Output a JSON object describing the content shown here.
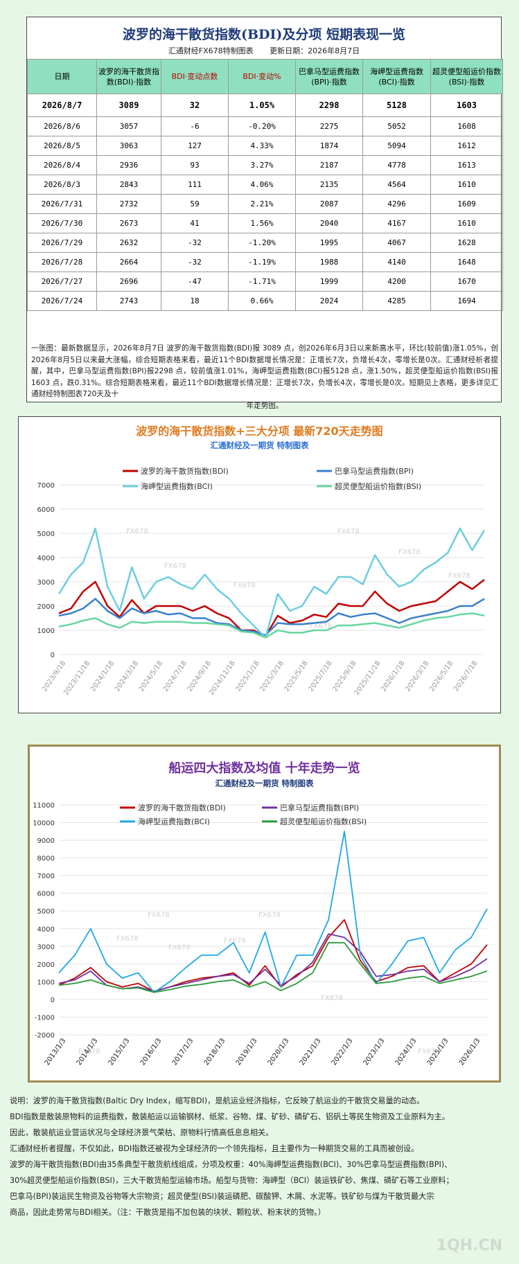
{
  "table": {
    "title": "波罗的海干散货指数(BDI)及分项  短期表现一览",
    "subtitle_left": "汇通财经FX678特制图表",
    "subtitle_right": "更新日期：2026年8月7日",
    "headers": [
      "日期",
      "波罗的海干散货指数(BDI)·指数",
      "BDI·变动点数",
      "BDI·变动%",
      "巴拿马型运费指数(BPI)·指数",
      "海岬型运费指数(BCI)·指数",
      "超灵便型船运价指数(BSI)·指数"
    ],
    "rows": [
      [
        "2026/8/7",
        "3089",
        "32",
        "1.05%",
        "2298",
        "5128",
        "1603"
      ],
      [
        "2026/8/6",
        "3057",
        "-6",
        "-0.20%",
        "2275",
        "5052",
        "1608"
      ],
      [
        "2026/8/5",
        "3063",
        "127",
        "4.33%",
        "1874",
        "5094",
        "1612"
      ],
      [
        "2026/8/4",
        "2936",
        "93",
        "3.27%",
        "2187",
        "4778",
        "1613"
      ],
      [
        "2026/8/3",
        "2843",
        "111",
        "4.06%",
        "2135",
        "4564",
        "1610"
      ],
      [
        "2026/7/31",
        "2732",
        "59",
        "2.21%",
        "2087",
        "4296",
        "1609"
      ],
      [
        "2026/7/30",
        "2673",
        "41",
        "1.56%",
        "2040",
        "4167",
        "1610"
      ],
      [
        "2026/7/29",
        "2632",
        "-32",
        "-1.20%",
        "1995",
        "4067",
        "1628"
      ],
      [
        "2026/7/28",
        "2664",
        "-32",
        "-1.19%",
        "1988",
        "4140",
        "1648"
      ],
      [
        "2026/7/27",
        "2696",
        "-47",
        "-1.71%",
        "1999",
        "4200",
        "1670"
      ],
      [
        "2026/7/24",
        "2743",
        "18",
        "0.66%",
        "2024",
        "4285",
        "1694"
      ]
    ],
    "note": "一张图：最新数据显示，2026年8月7日 波罗的海干散货指数(BDI)报 3089 点，创2026年6月3日以来新高水平，环比(较前值)涨1.05%，创2026年8月5日以来最大涨幅，综合短期表格来看，最近11个BDI数据增长情况是：正增长7次，负增长4次，零增长是0次。汇通财经析者提醒，其中，巴拿马型运费指数(BPI)报2298 点，较前值涨1.01%，海岬型运费指数(BCI)报5128 点，涨1.50%，超灵便型船运价指数(BSI)报1603 点，跌0.31%。综合短期表格来看，最近11个BDI数据增长情况是：正增长7次，负增长4次，零增长是0次。短期见上表格，更多详见汇通财经特制图表720天及十",
    "note_end": "年走势图。"
  },
  "chart_data": [
    {
      "type": "line",
      "title": "波罗的海干散货指数+三大分项  最新720天走势图",
      "subtitle": "汇通财经及一期货  特制图表",
      "watermark": "FX678",
      "ylim": [
        0,
        7000
      ],
      "yticks": [
        0,
        1000,
        2000,
        3000,
        4000,
        5000,
        6000,
        7000
      ],
      "xticks": [
        "2023/9/18",
        "2023/11/18",
        "2024/1/18",
        "2024/3/18",
        "2024/5/18",
        "2024/7/18",
        "2024/9/18",
        "2024/11/18",
        "2025/1/18",
        "2025/3/18",
        "2025/5/18",
        "2025/7/18",
        "2025/9/18",
        "2025/11/18",
        "2026/1/18",
        "2026/3/18",
        "2026/5/18",
        "2026/7/18"
      ],
      "x": [
        "2023/9",
        "2023/10",
        "2023/11",
        "2023/12",
        "2024/1",
        "2024/2",
        "2024/3",
        "2024/4",
        "2024/5",
        "2024/6",
        "2024/7",
        "2024/8",
        "2024/9",
        "2024/10",
        "2024/11",
        "2024/12",
        "2025/1",
        "2025/2",
        "2025/3",
        "2025/4",
        "2025/5",
        "2025/6",
        "2025/7",
        "2025/8",
        "2025/9",
        "2025/10",
        "2025/11",
        "2025/12",
        "2026/1",
        "2026/2",
        "2026/3",
        "2026/4",
        "2026/5",
        "2026/6",
        "2026/7",
        "2026/8"
      ],
      "series": [
        {
          "name": "波罗的海干散货指数(BDI)",
          "color": "#c00000",
          "values": [
            1700,
            1900,
            2600,
            3000,
            2000,
            1550,
            2250,
            1700,
            2000,
            2000,
            2000,
            1800,
            2000,
            1700,
            1500,
            1000,
            1000,
            750,
            1600,
            1300,
            1400,
            1650,
            1550,
            2100,
            2000,
            2000,
            2600,
            2100,
            1800,
            2000,
            2100,
            2200,
            2600,
            3000,
            2700,
            3089
          ]
        },
        {
          "name": "巴拿马型运费指数(BPI)",
          "color": "#3a7fcf",
          "values": [
            1600,
            1700,
            1900,
            2300,
            1800,
            1500,
            1900,
            1700,
            1800,
            1650,
            1700,
            1500,
            1500,
            1300,
            1250,
            1000,
            950,
            800,
            1300,
            1250,
            1250,
            1300,
            1350,
            1700,
            1550,
            1650,
            1700,
            1500,
            1300,
            1500,
            1600,
            1700,
            1800,
            2000,
            2000,
            2298
          ]
        },
        {
          "name": "海岬型运费指数(BCI)",
          "color": "#6ccde0",
          "values": [
            2500,
            3300,
            3800,
            5200,
            2800,
            1800,
            3600,
            2300,
            3000,
            3200,
            2900,
            2700,
            3300,
            2700,
            2300,
            1700,
            1200,
            700,
            2500,
            1800,
            2000,
            2800,
            2500,
            3200,
            3200,
            2900,
            4100,
            3300,
            2800,
            3000,
            3500,
            3800,
            4200,
            5200,
            4300,
            5128
          ]
        },
        {
          "name": "超灵便型船运价指数(BSI)",
          "color": "#66d6a0",
          "values": [
            1150,
            1250,
            1400,
            1500,
            1250,
            1100,
            1350,
            1300,
            1350,
            1350,
            1350,
            1300,
            1300,
            1250,
            1200,
            950,
            900,
            700,
            1000,
            900,
            900,
            1000,
            1000,
            1200,
            1200,
            1250,
            1300,
            1200,
            1100,
            1250,
            1400,
            1500,
            1550,
            1650,
            1700,
            1603
          ]
        }
      ]
    },
    {
      "type": "line",
      "title": "船运四大指数及均值 十年走势一览",
      "subtitle": "汇通财经及一期货 特制图表",
      "watermark": "FX678",
      "ylim": [
        -2000,
        11000
      ],
      "yticks": [
        -2000,
        -1000,
        0,
        1000,
        2000,
        3000,
        4000,
        5000,
        6000,
        7000,
        8000,
        9000,
        10000,
        11000
      ],
      "xticks": [
        "2013/1/3",
        "2014/1/3",
        "2015/1/3",
        "2016/1/3",
        "2017/1/3",
        "2018/1/3",
        "2019/1/3",
        "2020/1/3",
        "2021/1/3",
        "2022/1/3",
        "2023/1/3",
        "2024/1/3",
        "2025/1/3",
        "2026/1/3"
      ],
      "x": [
        "2013",
        "2013.5",
        "2014",
        "2014.5",
        "2015",
        "2015.5",
        "2016",
        "2016.5",
        "2017",
        "2017.5",
        "2018",
        "2018.5",
        "2019",
        "2019.5",
        "2020",
        "2020.5",
        "2021",
        "2021.5",
        "2022",
        "2022.5",
        "2023",
        "2023.5",
        "2024",
        "2024.5",
        "2025",
        "2025.5",
        "2026",
        "2026.6"
      ],
      "series": [
        {
          "name": "波罗的海干散货指数(BDI)",
          "color": "#c00000",
          "values": [
            800,
            1200,
            1800,
            1000,
            700,
            900,
            450,
            700,
            1000,
            1200,
            1300,
            1500,
            800,
            1900,
            700,
            1400,
            1900,
            3500,
            4500,
            2200,
            1000,
            1300,
            1800,
            1900,
            1000,
            1500,
            2000,
            3089
          ]
        },
        {
          "name": "巴拿马型运费指数(BPI)",
          "color": "#7030a0",
          "values": [
            900,
            1100,
            1600,
            800,
            600,
            700,
            450,
            700,
            900,
            1100,
            1300,
            1400,
            900,
            1700,
            800,
            1300,
            2100,
            3700,
            3500,
            2700,
            1300,
            1400,
            1600,
            1700,
            1000,
            1300,
            1700,
            2298
          ]
        },
        {
          "name": "海岬型运费指数(BCI)",
          "color": "#1ea7e6",
          "values": [
            1500,
            2500,
            4000,
            2000,
            1200,
            1500,
            400,
            1000,
            1800,
            2500,
            2500,
            3200,
            1500,
            3800,
            700,
            2500,
            2500,
            4500,
            9500,
            2500,
            900,
            2000,
            3300,
            3500,
            1500,
            2800,
            3500,
            5128
          ]
        },
        {
          "name": "超灵便型船运价指数(BSI)",
          "color": "#2a9a3a",
          "values": [
            800,
            900,
            1100,
            800,
            600,
            650,
            400,
            550,
            750,
            850,
            1000,
            1100,
            700,
            1000,
            500,
            900,
            1500,
            3200,
            3200,
            2000,
            900,
            1000,
            1200,
            1300,
            900,
            1100,
            1300,
            1603
          ]
        }
      ]
    }
  ],
  "explain": [
    "说明：波罗的海干散货指数(Baltic Dry Index，缩写BDI)，是航运业经济指标，它反映了航运业的干散货交易量的动态。",
    "BDI指数是散装原物料的运费指数，散装船运以运输钢材、纸浆、谷物、煤、矿砂、磷矿石、铝矾土等民生物资及工业原料为主。",
    "因此，散装航运业营运状况与全球经济景气荣枯、原物料行情高低息息相关。",
    "汇通财经析者提醒，不仅如此，BDI指数还被视为全球经济的一个领先指标，且主要作为一种期货交易的工具而被创设。",
    "波罗的海干散货指数(BDI)由35条典型干散货航线组成，分项及权重：40%海岬型运费指数(BCI)、30%巴拿马型运费指数(BPI)、",
    "30%超灵便型船运价指数(BSI)，三大干散货船型运输市场。船型与货物：海岬型（BCI）装运铁矿砂、焦煤、磷矿石等工业原料；",
    "巴拿马(BPI)装运民生物资及谷物等大宗物资；超灵便型(BSI)装运磷肥、碳酸钾、木屑、水泥等。铁矿砂与煤为干散货最大宗",
    "商品，因此走势常与BDI相关。（注：干散货是指不加包装的块状、颗粒状、粉末状的货物。）"
  ],
  "site_watermark": "1QH.CN"
}
